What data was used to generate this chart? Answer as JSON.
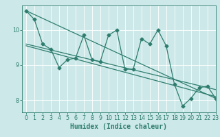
{
  "xlabel": "Humidex (Indice chaleur)",
  "bg_color": "#cce8e8",
  "grid_color": "#ffffff",
  "line_color": "#2e7d6e",
  "xlim": [
    -0.5,
    23
  ],
  "ylim": [
    7.65,
    10.7
  ],
  "yticks": [
    8,
    9,
    10
  ],
  "xticks": [
    0,
    1,
    2,
    3,
    4,
    5,
    6,
    7,
    8,
    9,
    10,
    11,
    12,
    13,
    14,
    15,
    16,
    17,
    18,
    19,
    20,
    21,
    22,
    23
  ],
  "main_x": [
    0,
    1,
    2,
    3,
    4,
    5,
    6,
    7,
    8,
    9,
    10,
    11,
    12,
    13,
    14,
    15,
    16,
    17,
    18,
    19,
    20,
    21,
    22,
    23
  ],
  "main_y": [
    10.55,
    10.3,
    9.6,
    9.45,
    8.93,
    9.15,
    9.2,
    9.85,
    9.15,
    9.1,
    9.85,
    10.0,
    8.88,
    8.88,
    9.75,
    9.6,
    10.0,
    9.55,
    8.45,
    7.83,
    8.05,
    8.35,
    8.4,
    8.05
  ],
  "line1_x": [
    0,
    23
  ],
  "line1_y": [
    10.55,
    8.05
  ],
  "line2_x": [
    0,
    23
  ],
  "line2_y": [
    9.6,
    8.3
  ],
  "line3_x": [
    0,
    23
  ],
  "line3_y": [
    9.55,
    8.1
  ],
  "marker_size": 2.5,
  "line_width": 0.9,
  "tick_fontsize": 5.8,
  "label_fontsize": 7.0
}
